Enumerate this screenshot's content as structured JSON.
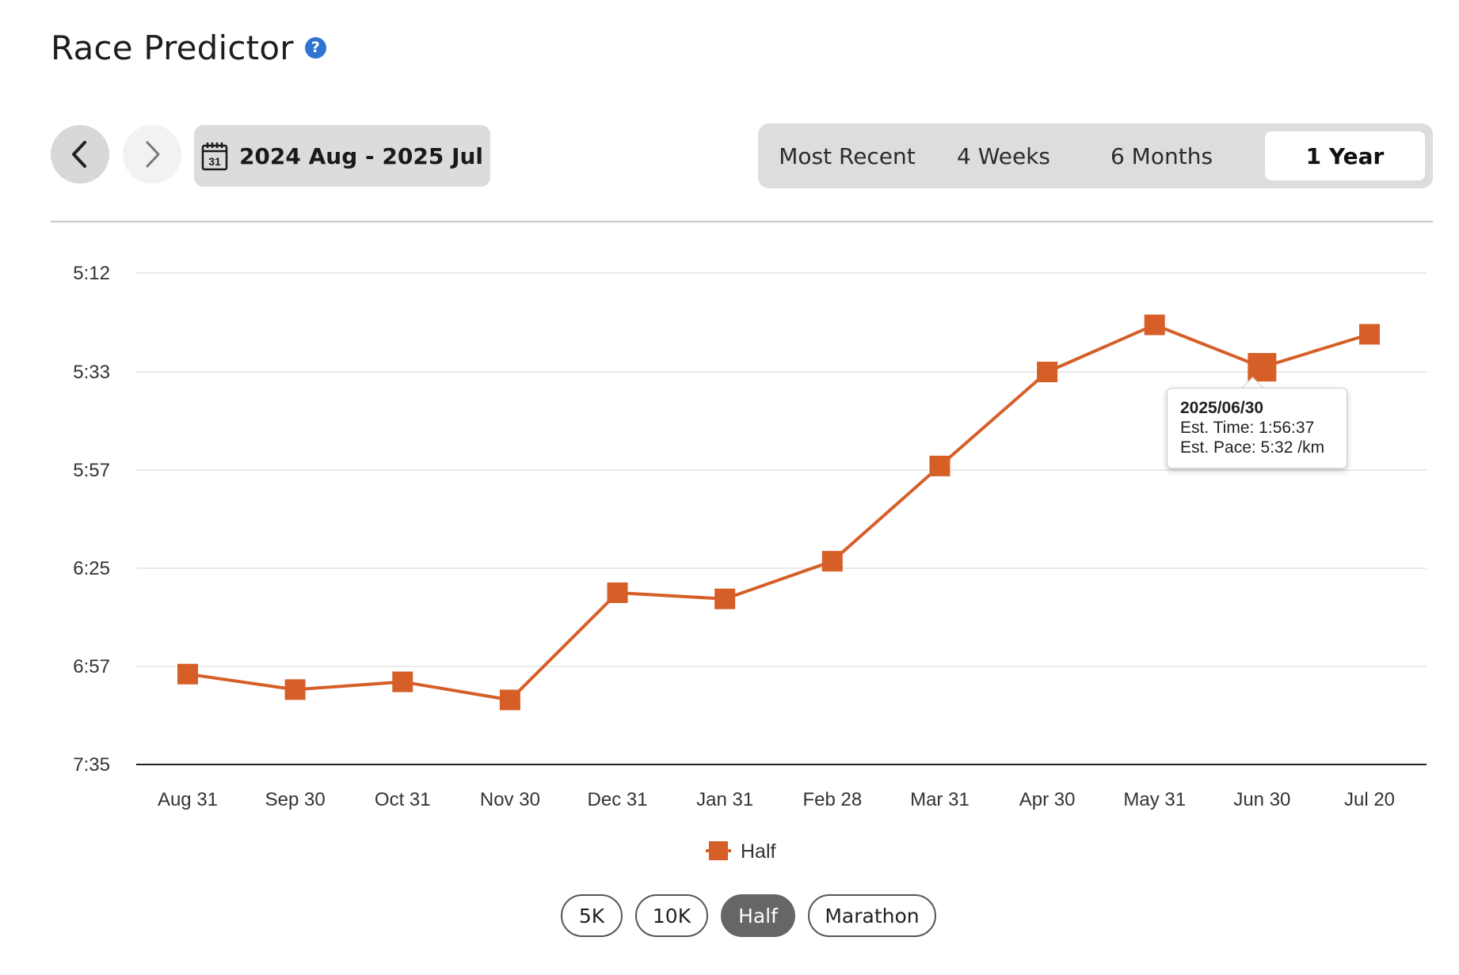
{
  "page": {
    "title": "Race Predictor",
    "help_icon": "question-circle-icon"
  },
  "toolbar": {
    "prev_icon": "chevron-left-icon",
    "next_icon": "chevron-right-icon",
    "calendar_icon": "calendar-icon",
    "calendar_day": "31",
    "date_range": "2024 Aug - 2025 Jul",
    "periods": [
      {
        "label": "Most Recent",
        "active": false
      },
      {
        "label": "4 Weeks",
        "active": false
      },
      {
        "label": "6 Months",
        "active": false
      },
      {
        "label": "1 Year",
        "active": true
      }
    ]
  },
  "colors": {
    "series": "#d65f28",
    "grid": "#e3e3e3",
    "axis": "#222222"
  },
  "chart_data": {
    "type": "line",
    "y_axis": {
      "ticks": [
        "5:12",
        "5:33",
        "5:57",
        "6:25",
        "6:57",
        "7:35"
      ],
      "reversed": true
    },
    "categories": [
      "Aug 31",
      "Sep 30",
      "Oct 31",
      "Nov 30",
      "Dec 31",
      "Jan 31",
      "Feb 28",
      "Mar 31",
      "Apr 30",
      "May 31",
      "Jun 30",
      "Jul 20"
    ],
    "series": [
      {
        "name": "Half",
        "marker": "square",
        "values": [
          "7:00",
          "7:06",
          "7:03",
          "7:10",
          "6:33",
          "6:35",
          "6:23",
          "5:56",
          "5:33",
          "5:23",
          "5:32",
          "5:25"
        ]
      }
    ],
    "grid": true,
    "legend": "bottom-center",
    "tooltip": {
      "category_index": 10,
      "date": "2025/06/30",
      "line1": "Est. Time: 1:56:37",
      "line2": "Est. Pace: 5:32 /km"
    }
  },
  "race_types": [
    {
      "label": "5K",
      "active": false
    },
    {
      "label": "10K",
      "active": false
    },
    {
      "label": "Half",
      "active": true
    },
    {
      "label": "Marathon",
      "active": false
    }
  ]
}
